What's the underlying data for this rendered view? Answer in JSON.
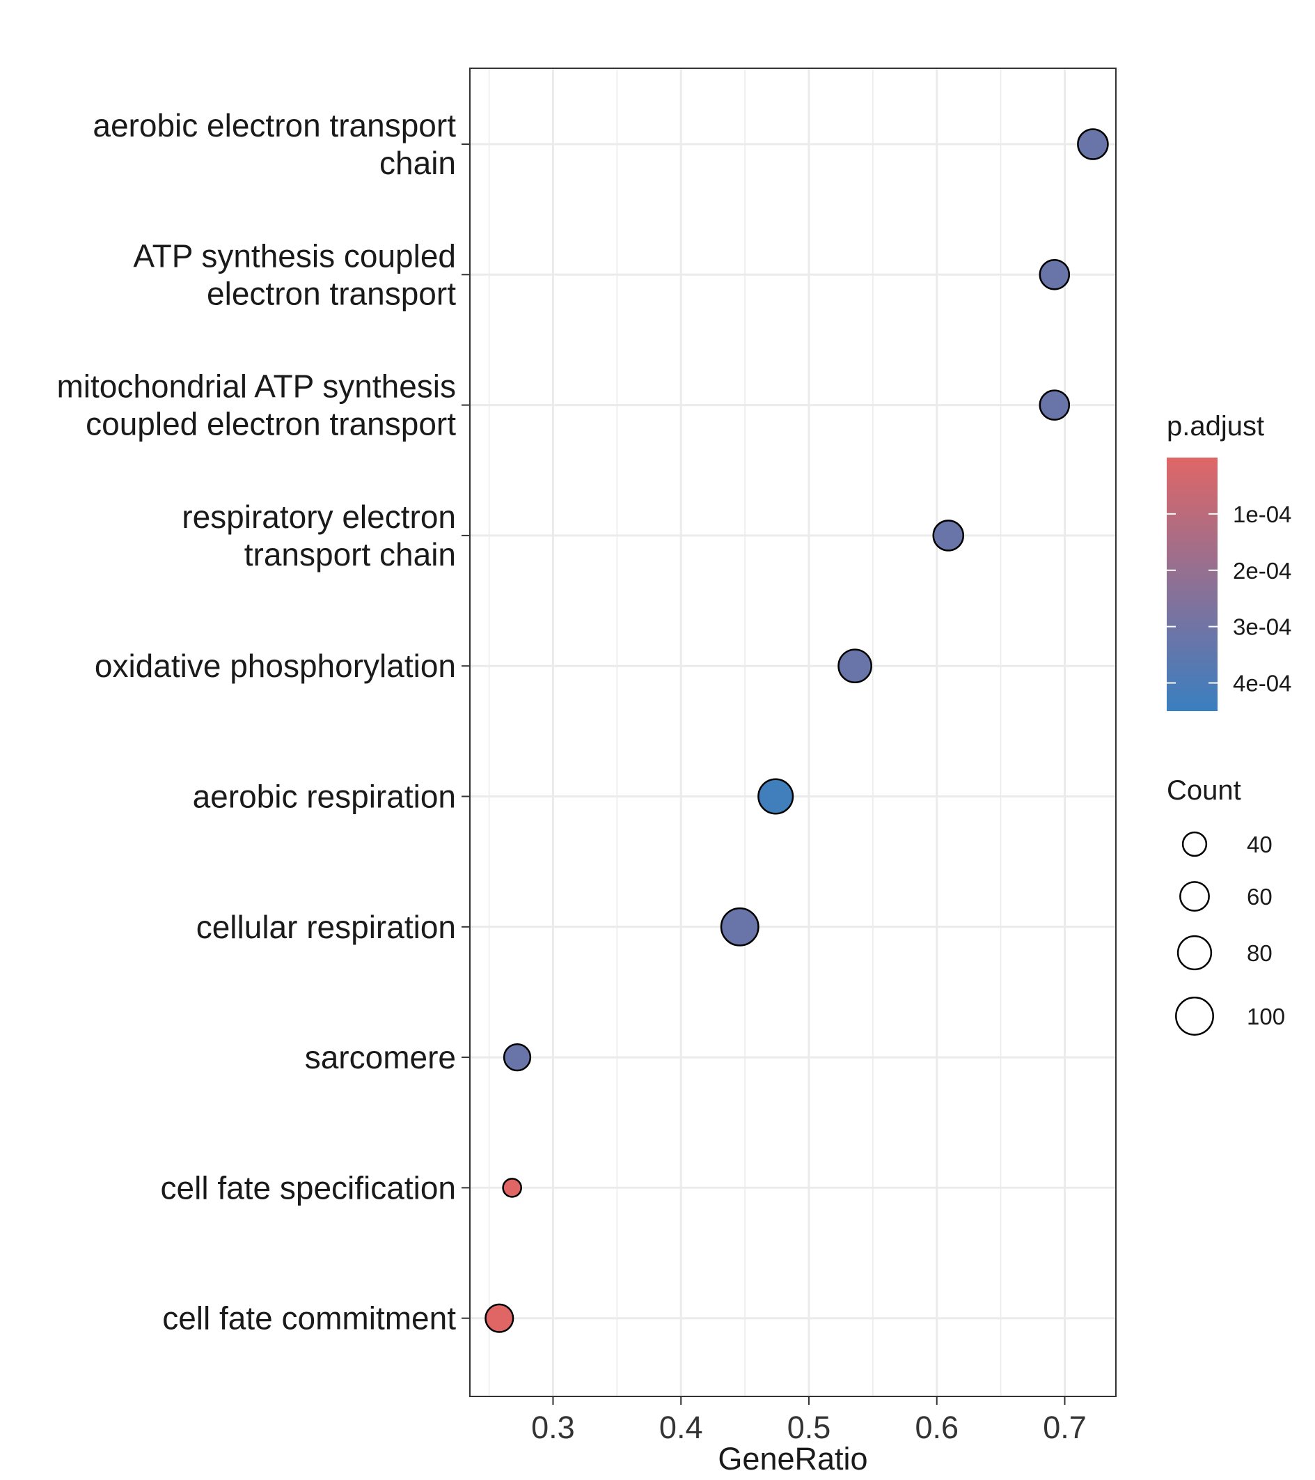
{
  "chart_data": {
    "type": "scatter",
    "xlabel": "GeneRatio",
    "xlim": [
      0.235,
      0.74
    ],
    "x_ticks": [
      "0.3",
      "0.4",
      "0.5",
      "0.6",
      "0.7"
    ],
    "categories": [
      "aerobic electron transport\nchain",
      "ATP synthesis coupled\nelectron transport",
      "mitochondrial ATP synthesis\ncoupled electron transport",
      "respiratory electron\ntransport chain",
      "oxidative phosphorylation",
      "aerobic respiration",
      "cellular respiration",
      "sarcomere",
      "cell fate specification",
      "cell fate commitment"
    ],
    "points": [
      {
        "term": "aerobic electron transport chain",
        "gene_ratio": 0.722,
        "count": 65,
        "p_adjust": 0.00032
      },
      {
        "term": "ATP synthesis coupled electron transport",
        "gene_ratio": 0.692,
        "count": 62,
        "p_adjust": 0.00032
      },
      {
        "term": "mitochondrial ATP synthesis coupled electron transport",
        "gene_ratio": 0.692,
        "count": 62,
        "p_adjust": 0.00032
      },
      {
        "term": "respiratory electron transport chain",
        "gene_ratio": 0.609,
        "count": 65,
        "p_adjust": 0.00032
      },
      {
        "term": "oxidative phosphorylation",
        "gene_ratio": 0.536,
        "count": 78,
        "p_adjust": 0.00032
      },
      {
        "term": "aerobic respiration",
        "gene_ratio": 0.474,
        "count": 86,
        "p_adjust": 0.00043
      },
      {
        "term": "cellular respiration",
        "gene_ratio": 0.446,
        "count": 100,
        "p_adjust": 0.00032
      },
      {
        "term": "sarcomere",
        "gene_ratio": 0.272,
        "count": 50,
        "p_adjust": 0.00032
      },
      {
        "term": "cell fate specification",
        "gene_ratio": 0.268,
        "count": 24,
        "p_adjust": 1e-06
      },
      {
        "term": "cell fate commitment",
        "gene_ratio": 0.258,
        "count": 55,
        "p_adjust": 1e-06
      }
    ],
    "color_legend": {
      "title": "p.adjust",
      "min": 0.0,
      "max": 0.00045,
      "low_color": "#e06666",
      "mid_color": "#6b75a8",
      "high_color": "#3a7fc0",
      "ticks": [
        {
          "label": "1e-04",
          "value": 0.0001
        },
        {
          "label": "2e-04",
          "value": 0.0002
        },
        {
          "label": "3e-04",
          "value": 0.0003
        },
        {
          "label": "4e-04",
          "value": 0.0004
        }
      ]
    },
    "size_legend": {
      "title": "Count",
      "entries": [
        {
          "label": "40",
          "value": 40
        },
        {
          "label": "60",
          "value": 60
        },
        {
          "label": "80",
          "value": 80
        },
        {
          "label": "100",
          "value": 100
        }
      ]
    },
    "grid": true,
    "legend_position": "right"
  }
}
